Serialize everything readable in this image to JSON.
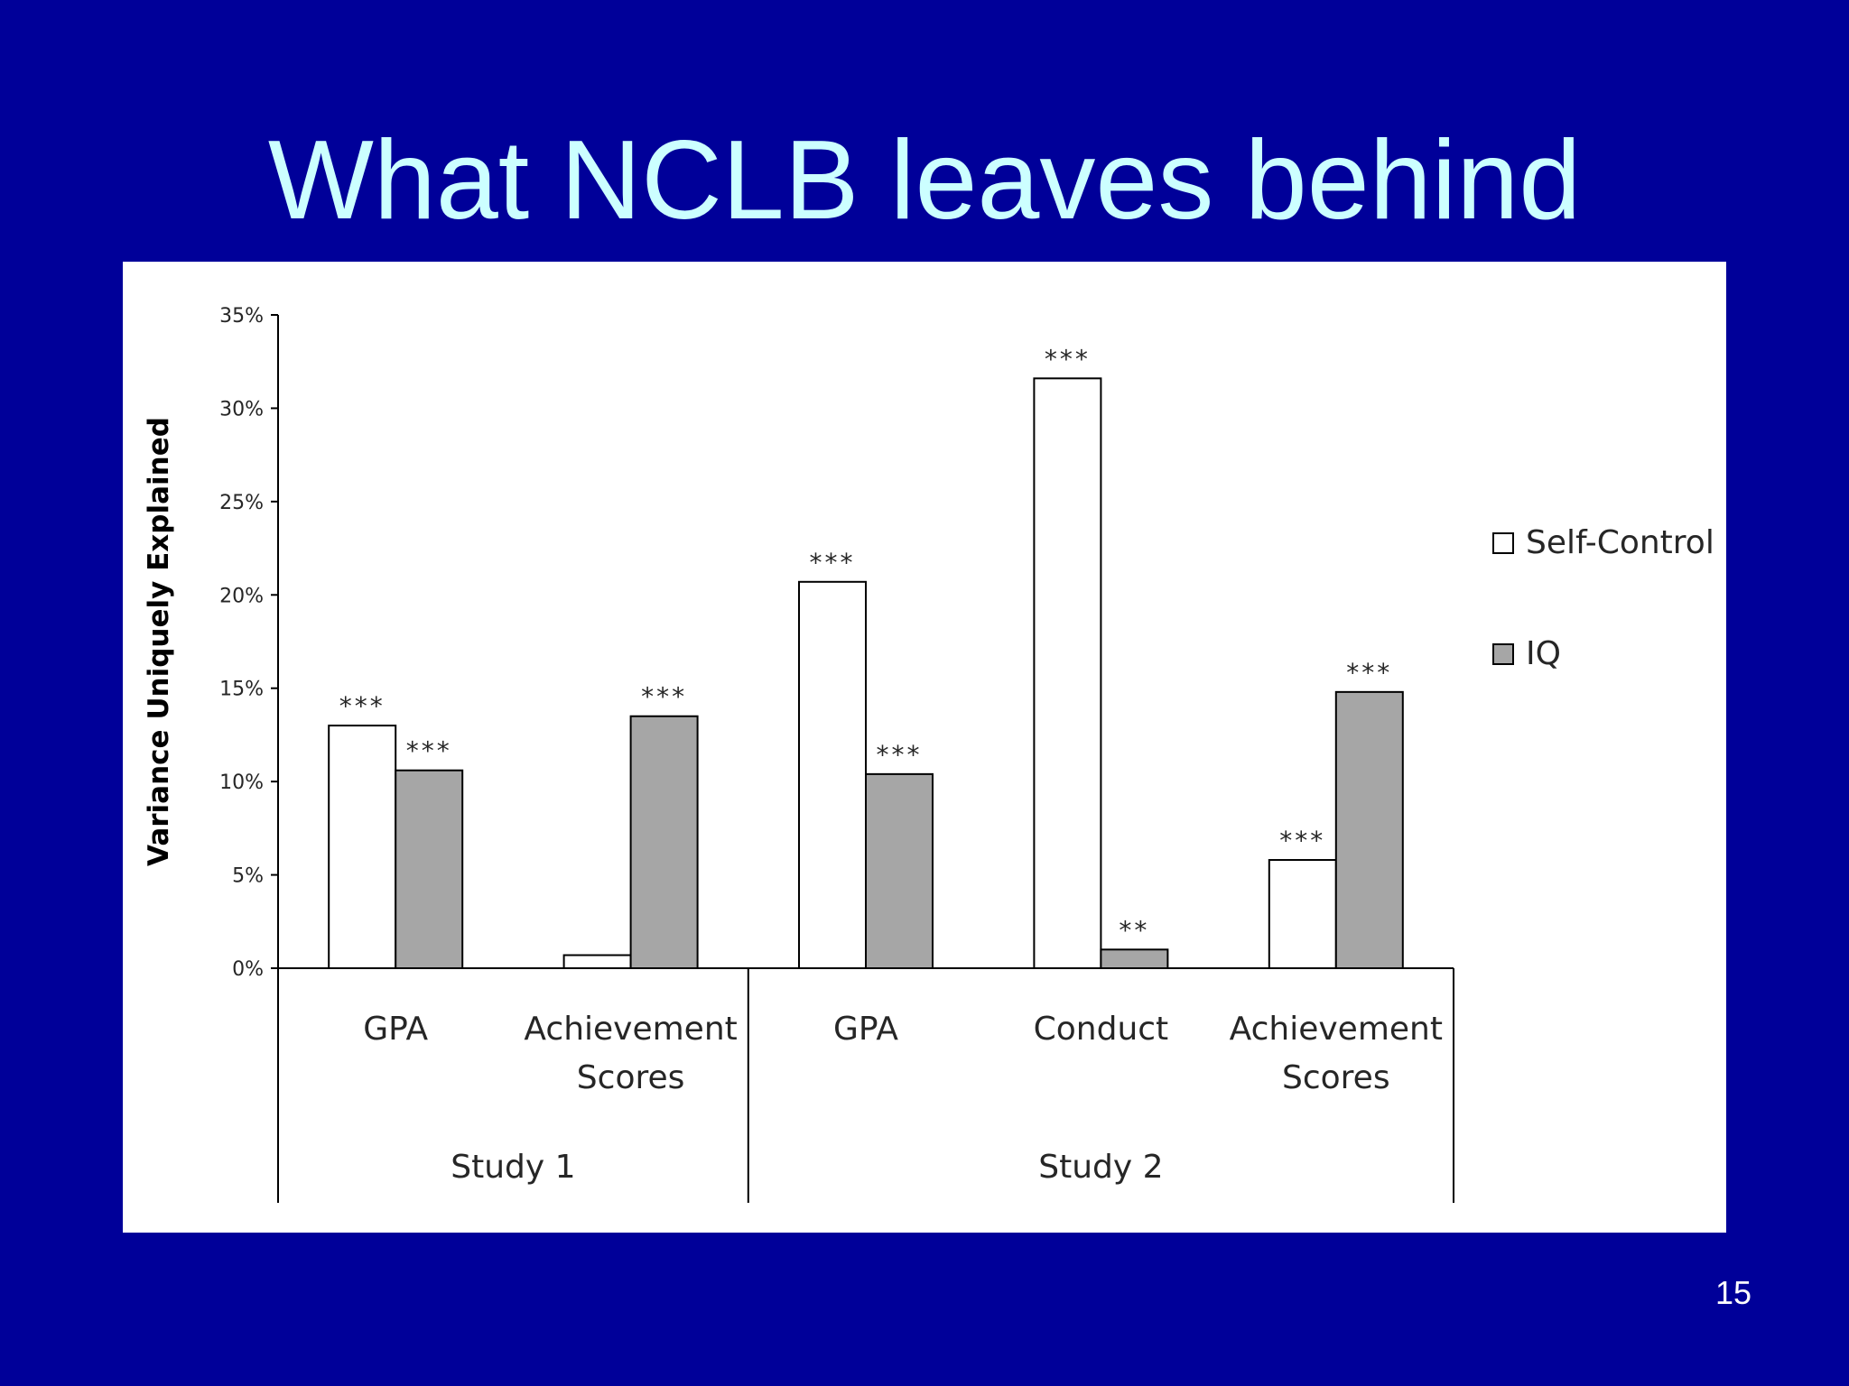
{
  "slide": {
    "title": "What NCLB leaves behind",
    "page_number": "15"
  },
  "colors": {
    "background": "#000099",
    "title": "#ccffff",
    "self_control": "#ffffff",
    "iq": "#a6a6a6",
    "axis": "#000000"
  },
  "chart_data": {
    "type": "bar",
    "ylabel": "Variance Uniquely Explained",
    "ylim": [
      0,
      35
    ],
    "yticks": [
      0,
      5,
      10,
      15,
      20,
      25,
      30,
      35
    ],
    "ytick_labels": [
      "0%",
      "5%",
      "10%",
      "15%",
      "20%",
      "25%",
      "30%",
      "35%"
    ],
    "categories": [
      "GPA",
      "Achievement Scores",
      "GPA",
      "Conduct",
      "Achievement Scores"
    ],
    "groups": [
      {
        "label": "Study 1",
        "categories": [
          0,
          1
        ]
      },
      {
        "label": "Study 2",
        "categories": [
          2,
          3,
          4
        ]
      }
    ],
    "series": [
      {
        "name": "Self-Control",
        "values": [
          13.0,
          0.7,
          20.7,
          31.6,
          5.8
        ],
        "annotations": [
          "***",
          "",
          "***",
          "***",
          "***"
        ]
      },
      {
        "name": "IQ",
        "values": [
          10.6,
          13.5,
          10.4,
          1.0,
          14.8
        ],
        "annotations": [
          "***",
          "***",
          "***",
          "**",
          "***"
        ]
      }
    ],
    "legend": "right"
  }
}
